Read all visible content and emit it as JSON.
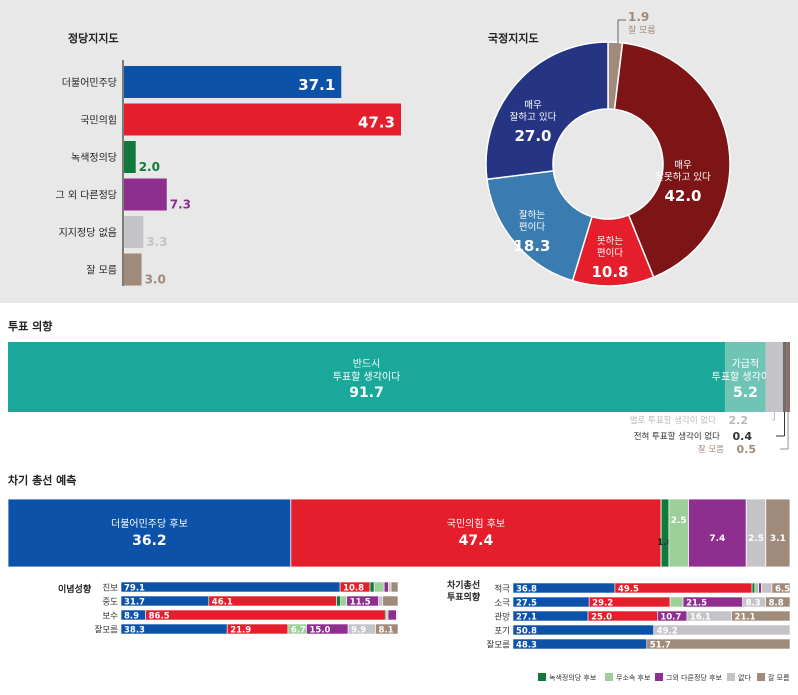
{
  "colors": {
    "dem": "#0c52a8",
    "ppp": "#e41e2b",
    "green": "#0f7a3c",
    "other": "#8e2e8e",
    "none": "#c3c3c8",
    "dk": "#a08a7a",
    "teal": "#1aa89a",
    "teal_light": "#6fc4b5",
    "indep": "#9ccf9a",
    "navy": "#263583",
    "darkred": "#7d1416",
    "steel": "#3a7cb0"
  },
  "party_support": {
    "title": "정당지지도",
    "categories": [
      "더불어민주당",
      "국민의힘",
      "녹색정의당",
      "그 외 다른정당",
      "지지정당 없음",
      "잘 모름"
    ],
    "values": [
      37.1,
      47.3,
      2.0,
      7.3,
      3.3,
      3.0
    ],
    "value_labels": [
      "37.1",
      "47.3",
      "2.0",
      "7.3",
      "3.3",
      "3.0"
    ]
  },
  "approval": {
    "title": "국정지지도",
    "segments": [
      {
        "label_lines": [
          "잘 모름"
        ],
        "value_label": "1.9",
        "value": 1.9
      },
      {
        "label_lines": [
          "매우",
          "잘못하고 있다"
        ],
        "value_label": "42.0",
        "value": 42.0
      },
      {
        "label_lines": [
          "못하는",
          "편이다"
        ],
        "value_label": "10.8",
        "value": 10.8
      },
      {
        "label_lines": [
          "잘하는",
          "편이다"
        ],
        "value_label": "18.3",
        "value": 18.3
      },
      {
        "label_lines": [
          "매우",
          "잘하고 있다"
        ],
        "value_label": "27.0",
        "value": 27.0
      }
    ]
  },
  "vote_intention": {
    "title": "투표 의향",
    "segments": [
      {
        "label_lines": [
          "반드시",
          "투표할 생각이다"
        ],
        "value_label": "91.7",
        "value": 91.7
      },
      {
        "label_lines": [
          "가급적",
          "투표할 생각이다"
        ],
        "value_label": "5.2",
        "value": 5.2
      },
      {
        "label": "별로 투표할 생각이 없다",
        "value_label": "2.2",
        "value": 2.2
      },
      {
        "label": "전혀 투표할 생각이 없다",
        "value_label": "0.4",
        "value": 0.4
      },
      {
        "label": "잘 모름",
        "value_label": "0.5",
        "value": 0.5
      }
    ]
  },
  "election_forecast": {
    "title": "차기 총선 예측",
    "segments": [
      {
        "label": "더불어민주당 후보",
        "value_label": "36.2",
        "value": 36.2
      },
      {
        "label": "국민의힘 후보",
        "value_label": "47.4",
        "value": 47.4
      },
      {
        "label": "",
        "value_label": "1.0",
        "value": 1.0
      },
      {
        "label": "",
        "value_label": "2.5",
        "value": 2.5
      },
      {
        "label": "",
        "value_label": "7.4",
        "value": 7.4
      },
      {
        "label": "",
        "value_label": "2.5",
        "value": 2.5
      },
      {
        "label": "",
        "value_label": "3.1",
        "value": 3.1
      }
    ]
  },
  "ideology": {
    "title": "이념성향",
    "rows": [
      {
        "label": "진보",
        "values": [
          79.1,
          10.8,
          1.5,
          3.6,
          1.5,
          1.0,
          2.5
        ],
        "value_labels": [
          "79.1",
          "10.8",
          "",
          "",
          "",
          "",
          ""
        ]
      },
      {
        "label": "중도",
        "values": [
          31.7,
          46.1,
          1.5,
          2.2,
          11.5,
          1.5,
          5.5
        ],
        "value_labels": [
          "31.7",
          "46.1",
          "",
          "",
          "11.5",
          "",
          ""
        ]
      },
      {
        "label": "보수",
        "values": [
          8.9,
          86.5,
          0.5,
          0.5,
          3.0,
          0.3,
          0.3
        ],
        "value_labels": [
          "8.9",
          "86.5",
          "",
          "",
          "",
          "",
          ""
        ]
      },
      {
        "label": "잘모름",
        "values": [
          38.3,
          21.9,
          0,
          6.7,
          15.0,
          9.9,
          8.1
        ],
        "value_labels": [
          "38.3",
          "21.9",
          "",
          "6.7",
          "15.0",
          "9.9",
          "8.1"
        ]
      }
    ]
  },
  "turnout": {
    "title_lines": [
      "차기총선",
      "투표의향"
    ],
    "rows": [
      {
        "label": "적극",
        "values": [
          36.8,
          49.5,
          1.0,
          1.4,
          1.0,
          3.8,
          6.5
        ],
        "value_labels": [
          "36.8",
          "49.5",
          "",
          "",
          "",
          "",
          "6.5"
        ]
      },
      {
        "label": "소극",
        "values": [
          27.5,
          29.2,
          0,
          4.7,
          21.5,
          8.3,
          8.8
        ],
        "value_labels": [
          "27.5",
          "29.2",
          "",
          "",
          "21.5",
          "8.3",
          "8.8"
        ]
      },
      {
        "label": "관망",
        "values": [
          27.1,
          25.0,
          0,
          0,
          10.7,
          16.1,
          21.1
        ],
        "value_labels": [
          "27.1",
          "25.0",
          "",
          "",
          "10.7",
          "16.1",
          "21.1"
        ]
      },
      {
        "label": "포기",
        "values": [
          50.8,
          0,
          0,
          0,
          0,
          49.2,
          0
        ],
        "value_labels": [
          "50.8",
          "",
          "",
          "",
          "",
          "49.2",
          ""
        ]
      },
      {
        "label": "잘모름",
        "values": [
          48.3,
          0,
          0,
          0,
          0,
          0,
          51.7
        ],
        "value_labels": [
          "48.3",
          "",
          "",
          "",
          "",
          "",
          "51.7"
        ]
      }
    ]
  },
  "legend": [
    "녹색정의당 후보",
    "무소속 후보",
    "그외 다른정당 후보",
    "없다",
    "잘 모름"
  ],
  "chart_data": [
    {
      "type": "bar",
      "title": "정당지지도",
      "categories": [
        "더불어민주당",
        "국민의힘",
        "녹색정의당",
        "그 외 다른정당",
        "지지정당 없음",
        "잘 모름"
      ],
      "values": [
        37.1,
        47.3,
        2.0,
        7.3,
        3.3,
        3.0
      ]
    },
    {
      "type": "pie",
      "title": "국정지지도",
      "categories": [
        "잘 모름",
        "매우 잘못하고 있다",
        "못하는 편이다",
        "잘하는 편이다",
        "매우 잘하고 있다"
      ],
      "values": [
        1.9,
        42.0,
        10.8,
        18.3,
        27.0
      ]
    },
    {
      "type": "bar",
      "title": "투표 의향",
      "categories": [
        "반드시 투표할 생각이다",
        "가급적 투표할 생각이다",
        "별로 투표할 생각이 없다",
        "전혀 투표할 생각이 없다",
        "잘 모름"
      ],
      "values": [
        91.7,
        5.2,
        2.2,
        0.4,
        0.5
      ]
    },
    {
      "type": "bar",
      "title": "차기 총선 예측",
      "categories": [
        "더불어민주당 후보",
        "국민의힘 후보",
        "녹색정의당 후보",
        "무소속 후보",
        "그외 다른정당 후보",
        "없다",
        "잘 모름"
      ],
      "values": [
        36.2,
        47.4,
        1.0,
        2.5,
        7.4,
        2.5,
        3.1
      ]
    },
    {
      "type": "bar",
      "title": "이념성향",
      "categories": [
        "진보",
        "중도",
        "보수",
        "잘모름"
      ],
      "series": [
        {
          "name": "더불어민주당 후보",
          "values": [
            79.1,
            31.7,
            8.9,
            38.3
          ]
        },
        {
          "name": "국민의힘 후보",
          "values": [
            10.8,
            46.1,
            86.5,
            21.9
          ]
        },
        {
          "name": "그외 다른정당 후보",
          "values": [
            null,
            11.5,
            null,
            15.0
          ]
        },
        {
          "name": "무소속 후보",
          "values": [
            null,
            null,
            null,
            6.7
          ]
        },
        {
          "name": "없다",
          "values": [
            null,
            null,
            null,
            9.9
          ]
        },
        {
          "name": "잘 모름",
          "values": [
            null,
            null,
            null,
            8.1
          ]
        }
      ]
    },
    {
      "type": "bar",
      "title": "차기총선 투표의향",
      "categories": [
        "적극",
        "소극",
        "관망",
        "포기",
        "잘모름"
      ],
      "series": [
        {
          "name": "더불어민주당 후보",
          "values": [
            36.8,
            27.5,
            27.1,
            50.8,
            48.3
          ]
        },
        {
          "name": "국민의힘 후보",
          "values": [
            49.5,
            29.2,
            25.0,
            null,
            null
          ]
        },
        {
          "name": "그외 다른정당 후보",
          "values": [
            null,
            21.5,
            10.7,
            null,
            null
          ]
        },
        {
          "name": "없다",
          "values": [
            null,
            8.3,
            16.1,
            49.2,
            null
          ]
        },
        {
          "name": "잘 모름",
          "values": [
            6.5,
            8.8,
            21.1,
            null,
            51.7
          ]
        }
      ]
    }
  ]
}
